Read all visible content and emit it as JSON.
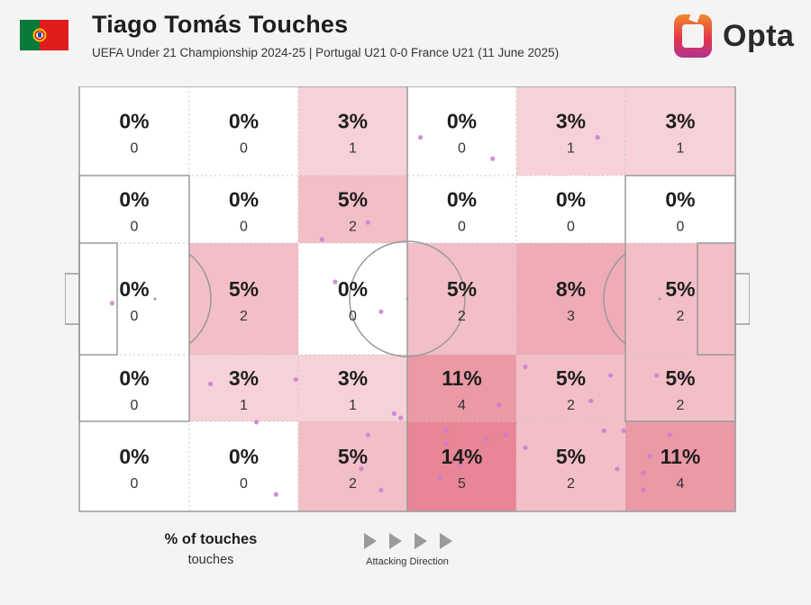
{
  "header": {
    "title": "Tiago Tomás Touches",
    "subtitle": "UEFA Under 21 Championship 2024-25 | Portugal U21 0-0 France U21 (11 June 2025)",
    "flag": "portugal-flag",
    "brand": "Opta"
  },
  "legend": {
    "title": "% of touches",
    "subtitle": "touches",
    "direction_label": "Attacking Direction"
  },
  "colors": {
    "cell_base": "#ffffff",
    "cell_heat": "#e88696",
    "dot": "#c97bd4",
    "line": "#9a9a9a",
    "logo_orange": "#f08a2a",
    "logo_purple": "#b2338f"
  },
  "chart_data": {
    "type": "heatmap",
    "title": "Tiago Tomás Touches",
    "rows": 5,
    "cols": 6,
    "attacking_direction": "left-to-right",
    "pct_labels": [
      [
        "0%",
        "0%",
        "3%",
        "0%",
        "3%",
        "3%"
      ],
      [
        "0%",
        "0%",
        "5%",
        "0%",
        "0%",
        "0%"
      ],
      [
        "0%",
        "5%",
        "0%",
        "5%",
        "8%",
        "5%"
      ],
      [
        "0%",
        "3%",
        "3%",
        "11%",
        "5%",
        "5%"
      ],
      [
        "0%",
        "0%",
        "5%",
        "14%",
        "5%",
        "11%"
      ]
    ],
    "counts": [
      [
        0,
        0,
        1,
        0,
        1,
        1
      ],
      [
        0,
        0,
        2,
        0,
        0,
        0
      ],
      [
        0,
        2,
        0,
        2,
        3,
        2
      ],
      [
        0,
        1,
        1,
        4,
        2,
        2
      ],
      [
        0,
        0,
        2,
        5,
        2,
        4
      ]
    ],
    "total_touches": 37,
    "touches": [
      [
        52,
        12
      ],
      [
        63,
        17
      ],
      [
        79,
        12
      ],
      [
        37,
        36
      ],
      [
        39,
        46
      ],
      [
        44,
        32
      ],
      [
        5,
        51
      ],
      [
        33,
        69
      ],
      [
        81,
        68
      ],
      [
        88,
        68
      ],
      [
        46,
        53
      ],
      [
        80,
        81
      ],
      [
        78,
        74
      ],
      [
        68,
        66
      ],
      [
        56,
        84
      ],
      [
        68,
        85
      ],
      [
        83,
        81
      ],
      [
        90,
        82
      ],
      [
        49,
        78
      ],
      [
        58,
        89
      ],
      [
        46,
        95
      ],
      [
        20,
        70
      ],
      [
        56,
        81
      ],
      [
        65,
        82
      ],
      [
        55,
        92
      ],
      [
        92,
        68
      ],
      [
        44,
        82
      ],
      [
        27,
        79
      ],
      [
        30,
        96
      ],
      [
        43,
        90
      ],
      [
        48,
        77
      ],
      [
        64,
        75
      ],
      [
        62,
        83
      ],
      [
        86,
        91
      ],
      [
        87,
        87
      ],
      [
        82,
        90
      ],
      [
        86,
        95
      ]
    ]
  }
}
